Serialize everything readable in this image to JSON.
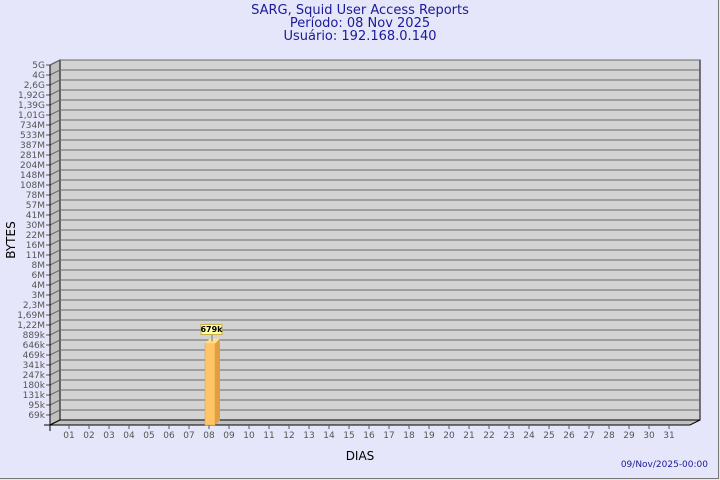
{
  "title": "SARG, Squid User Access Reports",
  "period": "Período: 08 Nov 2025",
  "user": "Usuário: 192.168.0.140",
  "timestamp": "09/Nov/2025-00:00",
  "colors": {
    "background": "#e6e6fa",
    "plot": "#d3d3d3",
    "grid": "#696969",
    "bar": "#ffc466",
    "title": "#1a1a9a"
  },
  "chart_data": {
    "type": "bar",
    "xlabel": "DIAS",
    "ylabel": "BYTES",
    "yscale": "log",
    "grid": true,
    "y_ticks": [
      "5G",
      "4G",
      "2,6G",
      "1,92G",
      "1,39G",
      "1,01G",
      "734M",
      "533M",
      "387M",
      "281M",
      "204M",
      "148M",
      "108M",
      "78M",
      "57M",
      "41M",
      "30M",
      "22M",
      "16M",
      "11M",
      "8M",
      "6M",
      "4M",
      "3M",
      "2,3M",
      "1,69M",
      "1,22M",
      "889k",
      "646k",
      "469k",
      "341k",
      "247k",
      "180k",
      "131k",
      "95k",
      "69k"
    ],
    "categories": [
      "01",
      "02",
      "03",
      "04",
      "05",
      "06",
      "07",
      "08",
      "09",
      "10",
      "11",
      "12",
      "13",
      "14",
      "15",
      "16",
      "17",
      "18",
      "19",
      "20",
      "21",
      "22",
      "23",
      "24",
      "25",
      "26",
      "27",
      "28",
      "29",
      "30",
      "31"
    ],
    "bars": [
      {
        "day": "08",
        "value": 679000,
        "label": "679k"
      }
    ]
  }
}
